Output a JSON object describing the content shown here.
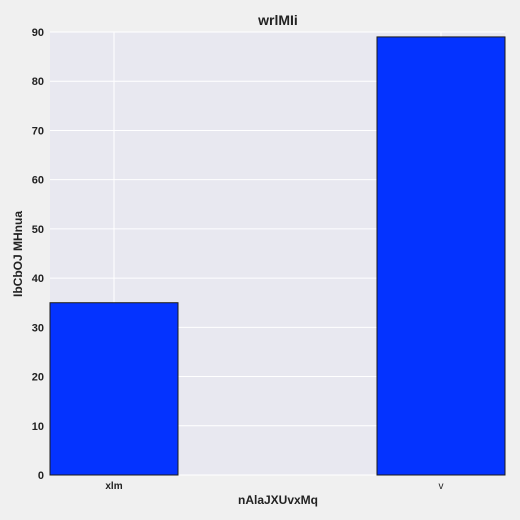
{
  "chart_data": {
    "type": "bar",
    "title": "wrlMIi",
    "xlabel": "nAlaJXUvxMq",
    "ylabel": "IbCbOJ MHnua",
    "categories": [
      "xlm",
      "v"
    ],
    "series": [
      {
        "values": [
          35,
          89
        ]
      }
    ],
    "ylim": [
      0,
      90
    ],
    "yticks": [
      0,
      10,
      20,
      30,
      40,
      50,
      60,
      70,
      80,
      90
    ],
    "grid": true,
    "colors": {
      "plot_background": "#e8e8f0",
      "grid": "#ffffff",
      "bar_fill": "#0433ff",
      "bar_edge": "#1a1a1a",
      "figure_background": "#f0f0f0"
    }
  }
}
